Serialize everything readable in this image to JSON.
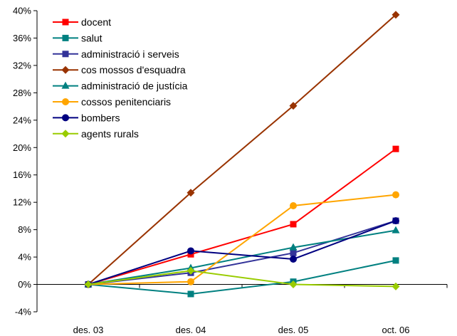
{
  "chart_data": {
    "type": "line",
    "categories": [
      "des. 03",
      "des. 04",
      "des. 05",
      "oct. 06"
    ],
    "ylim": [
      -4,
      40
    ],
    "yticks": [
      "-4%",
      "0%",
      "4%",
      "8%",
      "12%",
      "16%",
      "20%",
      "24%",
      "28%",
      "32%",
      "36%",
      "40%"
    ],
    "ytick_values": [
      -4,
      0,
      4,
      8,
      12,
      16,
      20,
      24,
      28,
      32,
      36,
      40
    ],
    "grid": false,
    "legend_position": "top-left",
    "series": [
      {
        "name": "docent",
        "color": "#ff0000",
        "marker": "square",
        "values": [
          0,
          4.4,
          8.8,
          19.8
        ]
      },
      {
        "name": "salut",
        "color": "#008080",
        "marker": "square",
        "values": [
          0,
          -1.4,
          0.4,
          3.5
        ]
      },
      {
        "name": "administració i serveis",
        "color": "#333399",
        "marker": "square",
        "values": [
          0,
          1.7,
          4.6,
          9.3
        ]
      },
      {
        "name": "cos mossos d'esquadra",
        "color": "#993300",
        "marker": "diamond",
        "values": [
          0,
          13.4,
          26.1,
          39.4
        ]
      },
      {
        "name": "administració de justícia",
        "color": "#008080",
        "marker": "triangle",
        "values": [
          0,
          2.4,
          5.4,
          7.9
        ]
      },
      {
        "name": "cossos penitenciaris",
        "color": "#ffa500",
        "marker": "circle",
        "values": [
          0,
          0.4,
          11.5,
          13.1
        ]
      },
      {
        "name": "bombers",
        "color": "#000080",
        "marker": "circle",
        "values": [
          0,
          4.9,
          3.7,
          9.3
        ]
      },
      {
        "name": "agents rurals",
        "color": "#99cc00",
        "marker": "diamond",
        "values": [
          0,
          2.0,
          0.0,
          -0.3
        ]
      }
    ]
  }
}
